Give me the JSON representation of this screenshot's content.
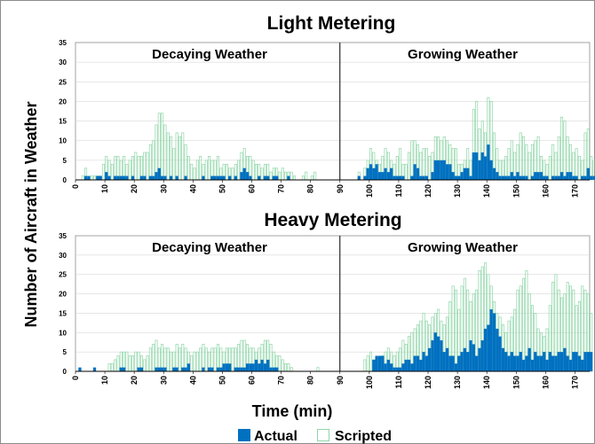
{
  "chart_data": [
    {
      "type": "bar",
      "title": "Light Metering",
      "panels": [
        "Decaying Weather",
        "Growing Weather"
      ],
      "ylim": [
        0,
        35
      ],
      "yticks": [
        0,
        5,
        10,
        15,
        20,
        25,
        30,
        35
      ],
      "xlim": [
        0,
        175
      ],
      "xticks": [
        0,
        10,
        20,
        30,
        40,
        50,
        60,
        70,
        80,
        90,
        100,
        110,
        120,
        130,
        140,
        150,
        160,
        170
      ],
      "divider_x": 90,
      "series": [
        {
          "name": "Actual",
          "start": 0,
          "values": [
            0,
            0,
            0,
            1,
            1,
            0,
            0,
            1,
            1,
            0,
            2,
            1,
            0,
            1,
            1,
            1,
            1,
            1,
            0,
            1,
            0,
            0,
            1,
            1,
            0,
            1,
            1,
            2,
            3,
            1,
            1,
            0,
            1,
            0,
            1,
            0,
            0,
            1,
            0,
            0,
            0,
            0,
            0,
            1,
            0,
            0,
            1,
            1,
            1,
            1,
            1,
            0,
            1,
            0,
            1,
            0,
            2,
            3,
            2,
            1,
            0,
            0,
            1,
            0,
            1,
            1,
            0,
            1,
            1,
            0,
            0,
            0,
            1,
            0,
            0,
            0,
            0,
            0,
            0,
            0,
            0,
            0,
            0,
            0,
            0,
            0,
            0,
            0,
            0,
            0,
            0,
            0,
            0,
            0,
            0,
            0,
            1,
            0,
            1,
            3,
            4,
            3,
            4,
            2,
            2,
            3,
            2,
            3,
            1,
            1,
            1,
            1,
            0,
            0,
            1,
            4,
            3,
            1,
            1,
            1,
            0,
            2,
            5,
            5,
            5,
            5,
            4,
            4,
            2,
            1,
            1,
            2,
            3,
            3,
            1,
            7,
            7,
            5,
            7,
            6,
            9,
            5,
            3,
            2,
            1,
            1,
            1,
            1,
            2,
            1,
            2,
            1,
            1,
            1,
            0,
            1,
            2,
            2,
            2,
            1,
            1,
            0,
            1,
            1,
            1,
            2,
            1,
            2,
            2,
            1,
            1,
            0,
            1,
            1,
            3,
            1,
            1,
            1,
            1,
            1
          ]
        },
        {
          "name": "Scripted",
          "start": 0,
          "values": [
            0,
            0,
            1,
            3,
            0,
            1,
            1,
            1,
            1,
            4,
            6,
            5,
            4,
            6,
            6,
            5,
            6,
            4,
            5,
            6,
            7,
            6,
            6,
            7,
            7,
            9,
            10,
            14,
            17,
            17,
            14,
            12,
            11,
            8,
            12,
            11,
            12,
            9,
            6,
            4,
            3,
            5,
            6,
            4,
            5,
            6,
            5,
            5,
            6,
            3,
            4,
            4,
            3,
            3,
            4,
            5,
            7,
            8,
            6,
            6,
            5,
            4,
            4,
            3,
            4,
            4,
            2,
            3,
            3,
            2,
            3,
            2,
            2,
            2,
            1,
            0,
            0,
            1,
            2,
            0,
            1,
            2,
            0,
            0,
            0,
            0,
            0,
            0,
            0,
            0,
            0,
            0,
            0,
            0,
            0,
            0,
            2,
            0,
            3,
            5,
            8,
            7,
            5,
            4,
            6,
            8,
            7,
            5,
            4,
            6,
            8,
            4,
            4,
            7,
            10,
            10,
            9,
            7,
            8,
            8,
            6,
            7,
            11,
            11,
            10,
            11,
            10,
            9,
            8,
            8,
            4,
            4,
            5,
            8,
            5,
            18,
            20,
            13,
            15,
            12,
            21,
            20,
            12,
            8,
            5,
            5,
            6,
            8,
            10,
            7,
            9,
            12,
            11,
            9,
            7,
            9,
            10,
            11,
            6,
            5,
            4,
            6,
            9,
            7,
            11,
            16,
            15,
            11,
            9,
            7,
            8,
            6,
            5,
            12,
            13,
            6,
            5,
            5,
            5,
            5
          ]
        }
      ]
    },
    {
      "type": "bar",
      "title": "Heavy Metering",
      "panels": [
        "Decaying Weather",
        "Growing Weather"
      ],
      "ylim": [
        0,
        35
      ],
      "yticks": [
        0,
        5,
        10,
        15,
        20,
        25,
        30,
        35
      ],
      "xlim": [
        0,
        175
      ],
      "xticks": [
        0,
        10,
        20,
        30,
        40,
        50,
        60,
        70,
        80,
        90,
        100,
        110,
        120,
        130,
        140,
        150,
        160,
        170
      ],
      "divider_x": 90,
      "series": [
        {
          "name": "Actual",
          "start": 0,
          "values": [
            0,
            1,
            0,
            0,
            0,
            0,
            1,
            0,
            0,
            0,
            0,
            0,
            0,
            0,
            0,
            1,
            1,
            0,
            0,
            0,
            0,
            1,
            1,
            0,
            0,
            0,
            0,
            1,
            1,
            1,
            1,
            0,
            0,
            1,
            1,
            0,
            1,
            1,
            2,
            0,
            0,
            0,
            0,
            1,
            0,
            1,
            1,
            0,
            1,
            1,
            2,
            2,
            2,
            0,
            1,
            1,
            1,
            1,
            2,
            2,
            2,
            3,
            2,
            3,
            2,
            3,
            1,
            1,
            1,
            0,
            0,
            0,
            0,
            0,
            0,
            0,
            0,
            0,
            0,
            0,
            0,
            0,
            0,
            0,
            0,
            0,
            0,
            0,
            0,
            0,
            0,
            0,
            0,
            0,
            0,
            0,
            0,
            0,
            0,
            0,
            0,
            3,
            4,
            4,
            4,
            2,
            3,
            2,
            1,
            1,
            1,
            2,
            3,
            3,
            2,
            4,
            4,
            3,
            5,
            4,
            6,
            8,
            10,
            9,
            8,
            5,
            6,
            4,
            4,
            2,
            4,
            5,
            6,
            5,
            8,
            7,
            4,
            6,
            8,
            11,
            12,
            16,
            15,
            11,
            9,
            6,
            5,
            4,
            5,
            4,
            4,
            5,
            3,
            4,
            6,
            3,
            5,
            4,
            4,
            5,
            3,
            5,
            4,
            4,
            5,
            5,
            6,
            4,
            3,
            5,
            5,
            4,
            3,
            5,
            5,
            5
          ]
        },
        {
          "name": "Scripted",
          "start": 0,
          "values": [
            0,
            0,
            0,
            0,
            0,
            0,
            0,
            0,
            0,
            0,
            0,
            2,
            2,
            3,
            4,
            5,
            5,
            5,
            4,
            4,
            5,
            5,
            4,
            3,
            4,
            6,
            7,
            8,
            6,
            7,
            6,
            6,
            5,
            5,
            7,
            6,
            7,
            6,
            5,
            4,
            5,
            5,
            6,
            7,
            6,
            5,
            6,
            6,
            7,
            6,
            5,
            6,
            6,
            6,
            6,
            7,
            8,
            8,
            7,
            6,
            6,
            5,
            6,
            7,
            8,
            8,
            7,
            5,
            4,
            4,
            3,
            2,
            2,
            1,
            0,
            0,
            0,
            0,
            0,
            0,
            0,
            0,
            1,
            0,
            0,
            0,
            0,
            0,
            0,
            0,
            0,
            0,
            0,
            0,
            0,
            0,
            0,
            0,
            3,
            4,
            5,
            3,
            2,
            3,
            4,
            5,
            6,
            5,
            4,
            5,
            6,
            8,
            7,
            9,
            10,
            11,
            12,
            13,
            15,
            13,
            12,
            14,
            15,
            16,
            13,
            12,
            14,
            18,
            22,
            21,
            16,
            22,
            24,
            21,
            18,
            20,
            21,
            26,
            27,
            28,
            25,
            22,
            18,
            15,
            14,
            12,
            10,
            13,
            14,
            16,
            21,
            22,
            24,
            26,
            20,
            17,
            15,
            11,
            10,
            9,
            11,
            17,
            23,
            25,
            21,
            19,
            20,
            23,
            22,
            21,
            17,
            18,
            22,
            21,
            20,
            15
          ]
        }
      ]
    }
  ],
  "axes": {
    "ylabel": "Number of Aircraft in Weather",
    "xlabel": "Time (min)"
  },
  "legend": [
    {
      "label": "Actual",
      "style": "filled"
    },
    {
      "label": "Scripted",
      "style": "outline"
    }
  ],
  "colors": {
    "actual_fill": "#0070c0",
    "scripted_stroke": "#8fd6a8",
    "grid": "#d9d9d9",
    "axis": "#000000",
    "frame": "#8c8c8c"
  }
}
